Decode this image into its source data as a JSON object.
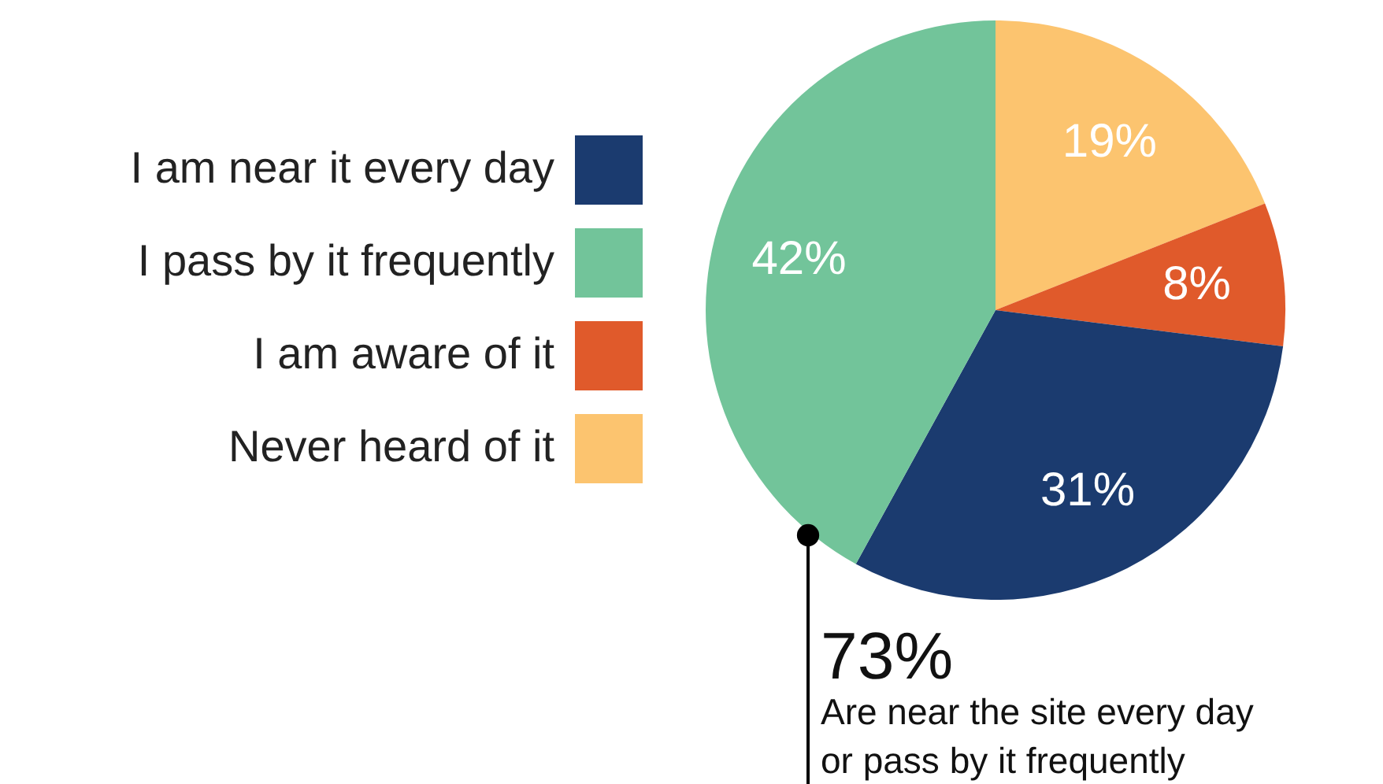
{
  "chart_data": {
    "type": "pie",
    "categories": [
      "Never heard of it",
      "I am aware of it",
      "I am near it every day",
      "I pass by it frequently"
    ],
    "values": [
      19,
      8,
      31,
      42
    ],
    "value_labels": [
      "19%",
      "8%",
      "31%",
      "42%"
    ],
    "colors": [
      "#fcc46f",
      "#e05a2b",
      "#1b3b6f",
      "#72c49a"
    ],
    "legend": "left",
    "annotations": [
      "73%",
      "Are near the site every day or pass by it frequently"
    ]
  }
}
